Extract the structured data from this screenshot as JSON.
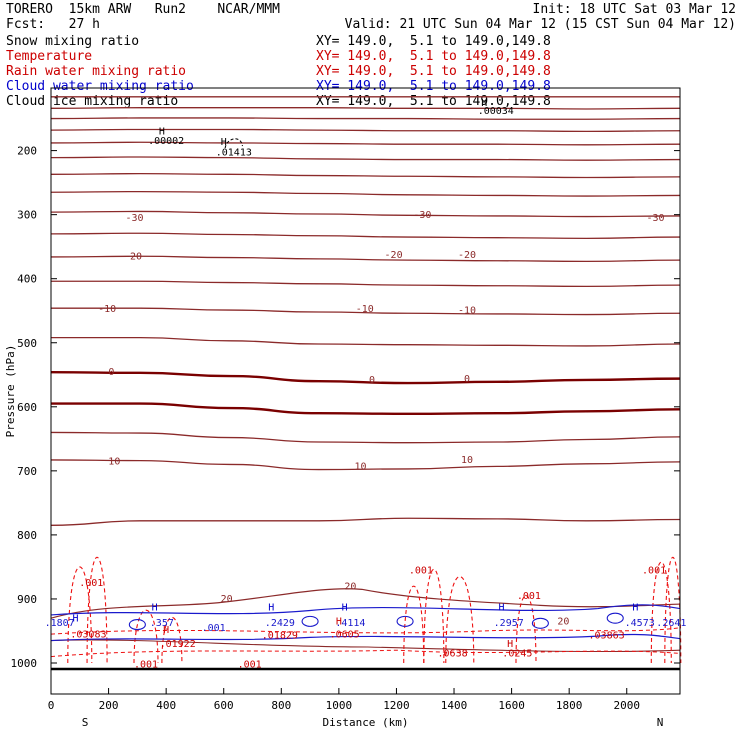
{
  "header": {
    "model": "TORERO  15km ARW   Run2    NCAR/MMM",
    "init": "Init: 18 UTC Sat 03 Mar 12",
    "fcst": "Fcst:   27 h",
    "valid": "Valid: 21 UTC Sun 04 Mar 12 (15 CST Sun 04 Mar 12)"
  },
  "legend": [
    {
      "name": "Snow mixing ratio",
      "xy": "XY= 149.0,  5.1 to 149.0,149.8",
      "color": "#000000"
    },
    {
      "name": "Temperature",
      "xy": "XY= 149.0,  5.1 to 149.0,149.8",
      "color": "#cc0000"
    },
    {
      "name": "Rain water mixing ratio",
      "xy": "XY= 149.0,  5.1 to 149.0,149.8",
      "color": "#cc0000"
    },
    {
      "name": "Cloud water mixing ratio",
      "xy": "XY= 149.0,  5.1 to 149.0,149.8",
      "color": "#0000cc"
    },
    {
      "name": "Cloud ice mixing ratio",
      "xy": "XY= 149.0,  5.1 to 149.0,149.8",
      "color": "#000000"
    }
  ],
  "chart_data": {
    "type": "cross-section",
    "xlabel": "Distance (km)",
    "ylabel": "Pressure (hPa)",
    "xlim": [
      0,
      2185
    ],
    "ylim": [
      1050,
      125
    ],
    "x_ticks": [
      0,
      200,
      400,
      600,
      800,
      1000,
      1200,
      1400,
      1600,
      1800,
      2000
    ],
    "y_ticks": [
      200,
      300,
      400,
      500,
      600,
      700,
      800,
      900,
      1000
    ],
    "end_labels": {
      "left": "S",
      "right": "N"
    },
    "temperature_contours": [
      {
        "value": -40,
        "p": [
          116,
          116,
          116,
          116,
          116,
          116,
          116,
          116
        ]
      },
      {
        "value": -40,
        "p": [
          134,
          133,
          133,
          133,
          134,
          134,
          135,
          134
        ]
      },
      {
        "value": -40,
        "p": [
          150,
          149,
          149,
          150,
          150,
          151,
          151,
          150
        ]
      },
      {
        "value": -30,
        "p": [
          168,
          167,
          167,
          168,
          169,
          169,
          170,
          169
        ]
      },
      {
        "value": -30,
        "p": [
          188,
          187,
          188,
          189,
          190,
          190,
          191,
          190
        ]
      },
      {
        "value": -30,
        "p": [
          211,
          210,
          211,
          213,
          214,
          214,
          215,
          214
        ]
      },
      {
        "value": -30,
        "p": [
          237,
          236,
          237,
          239,
          240,
          241,
          242,
          241
        ]
      },
      {
        "value": -30,
        "p": [
          265,
          264,
          265,
          267,
          269,
          270,
          271,
          270
        ]
      },
      {
        "value": -30,
        "p": [
          296,
          295,
          297,
          299,
          301,
          302,
          303,
          302
        ]
      },
      {
        "value": -30,
        "p": [
          330,
          329,
          331,
          333,
          335,
          336,
          337,
          335
        ]
      },
      {
        "value": -20,
        "p": [
          366,
          365,
          367,
          369,
          371,
          372,
          373,
          371
        ]
      },
      {
        "value": -20,
        "p": [
          404,
          404,
          406,
          408,
          410,
          411,
          412,
          410
        ]
      },
      {
        "value": -10,
        "p": [
          446,
          446,
          449,
          452,
          454,
          455,
          456,
          454
        ]
      },
      {
        "value": -10,
        "p": [
          492,
          492,
          497,
          502,
          503,
          504,
          505,
          502
        ]
      },
      {
        "value": 0,
        "p": [
          546,
          547,
          552,
          560,
          563,
          561,
          558,
          556
        ]
      },
      {
        "value": 0,
        "p": [
          595,
          595,
          602,
          610,
          611,
          610,
          607,
          604
        ]
      },
      {
        "value": 10,
        "p": [
          640,
          641,
          648,
          655,
          656,
          655,
          651,
          647
        ]
      },
      {
        "value": 10,
        "p": [
          683,
          684,
          690,
          698,
          697,
          693,
          689,
          686
        ]
      },
      {
        "value": 10,
        "p": [
          785,
          778,
          778,
          778,
          774,
          775,
          778,
          776
        ]
      }
    ],
    "temperature_labels": [
      {
        "text": "-30",
        "x": 290,
        "p": 310
      },
      {
        "text": "-30",
        "x": 1290,
        "p": 305
      },
      {
        "text": "-30",
        "x": 2100,
        "p": 310
      },
      {
        "text": "-20",
        "x": 285,
        "p": 370
      },
      {
        "text": "-20",
        "x": 1190,
        "p": 368
      },
      {
        "text": "-20",
        "x": 1445,
        "p": 368
      },
      {
        "text": "-10",
        "x": 195,
        "p": 452
      },
      {
        "text": "-10",
        "x": 1090,
        "p": 452
      },
      {
        "text": "-10",
        "x": 1445,
        "p": 454
      },
      {
        "text": "0",
        "x": 210,
        "p": 550
      },
      {
        "text": "0",
        "x": 1115,
        "p": 563
      },
      {
        "text": "0",
        "x": 1445,
        "p": 561
      },
      {
        "text": "10",
        "x": 220,
        "p": 690
      },
      {
        "text": "10",
        "x": 1075,
        "p": 698
      },
      {
        "text": "10",
        "x": 1445,
        "p": 688
      },
      {
        "text": "20",
        "x": 1040,
        "p": 885
      },
      {
        "text": "20",
        "x": 610,
        "p": 905
      },
      {
        "text": "20",
        "x": 1780,
        "p": 940
      }
    ],
    "ice_maxima": [
      {
        "text": ".00002",
        "x": 400,
        "p": 190
      },
      {
        "text": ".01413",
        "x": 635,
        "p": 208
      },
      {
        "text": ".00034",
        "x": 1545,
        "p": 143
      }
    ],
    "rain_labels": [
      {
        "text": ".001",
        "x": 140,
        "p": 880
      },
      {
        "text": ".001",
        "x": 1285,
        "p": 860
      },
      {
        "text": ".001",
        "x": 1660,
        "p": 900
      },
      {
        "text": ".001",
        "x": 2095,
        "p": 860
      },
      {
        "text": ".001",
        "x": 330,
        "p": 1007
      },
      {
        "text": ".001",
        "x": 690,
        "p": 1007
      },
      {
        "text": ".03083",
        "x": 130,
        "p": 960
      },
      {
        "text": ".01922",
        "x": 440,
        "p": 975
      },
      {
        "text": ".01829",
        "x": 795,
        "p": 962
      },
      {
        "text": ".0605",
        "x": 1020,
        "p": 960
      },
      {
        "text": ".0638",
        "x": 1395,
        "p": 990
      },
      {
        "text": ".0245",
        "x": 1620,
        "p": 990
      },
      {
        "text": ".03863",
        "x": 1930,
        "p": 962
      }
    ],
    "cloud_labels": [
      {
        "text": ".1807",
        "x": 30,
        "p": 942
      },
      {
        "text": ".357",
        "x": 385,
        "p": 942
      },
      {
        "text": ".001",
        "x": 565,
        "p": 950
      },
      {
        "text": ".2429",
        "x": 795,
        "p": 942
      },
      {
        "text": ".4114",
        "x": 1040,
        "p": 942
      },
      {
        "text": ".2957",
        "x": 1590,
        "p": 942
      },
      {
        "text": ".4573",
        "x": 2045,
        "p": 942
      },
      {
        "text": ".2641",
        "x": 2155,
        "p": 942
      }
    ],
    "maxima_marks": [
      {
        "text": "H",
        "x": 385,
        "p": 175,
        "color": "#000000"
      },
      {
        "text": "H",
        "x": 600,
        "p": 191,
        "color": "#000000"
      },
      {
        "text": "H",
        "x": 1505,
        "p": 130,
        "color": "#000000"
      },
      {
        "text": "H",
        "x": 85,
        "p": 935,
        "color": "#0000cc"
      },
      {
        "text": "H",
        "x": 360,
        "p": 918,
        "color": "#0000cc"
      },
      {
        "text": "H",
        "x": 765,
        "p": 918,
        "color": "#0000cc"
      },
      {
        "text": "H",
        "x": 1020,
        "p": 918,
        "color": "#0000cc"
      },
      {
        "text": "H",
        "x": 1565,
        "p": 918,
        "color": "#0000cc"
      },
      {
        "text": "H",
        "x": 2030,
        "p": 918,
        "color": "#0000cc"
      },
      {
        "text": "H",
        "x": 400,
        "p": 953,
        "color": "#cc0000"
      },
      {
        "text": "H",
        "x": 1000,
        "p": 940,
        "color": "#cc0000"
      },
      {
        "text": "H",
        "x": 1595,
        "p": 975,
        "color": "#cc0000"
      }
    ]
  }
}
